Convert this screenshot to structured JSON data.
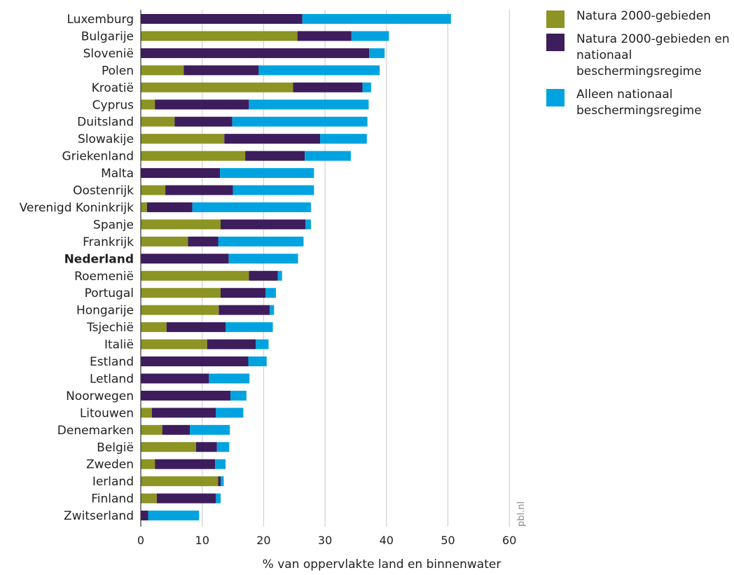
{
  "credit": "pbl.nl",
  "colors": {
    "natura": "#8C9423",
    "both": "#3D1D5C",
    "national": "#00A3DF",
    "grid": "#c8c8c8",
    "axis": "#333333"
  },
  "legend": [
    {
      "label": "Natura 2000-gebieden",
      "color": "#8C9423"
    },
    {
      "label": "Natura 2000-gebieden en nationaal beschermingsregime",
      "color": "#3D1D5C"
    },
    {
      "label": "Alleen nationaal beschermingsregime",
      "color": "#00A3DF"
    }
  ],
  "chart_data": {
    "type": "bar",
    "orientation": "horizontal",
    "stacked": true,
    "xlabel": "% van oppervlakte land en binnenwater",
    "xlim": [
      0,
      60
    ],
    "xticks": [
      0,
      10,
      20,
      30,
      40,
      50,
      60
    ],
    "grid": true,
    "legend_position": "right",
    "highlighted_category": "Nederland",
    "categories": [
      "Luxemburg",
      "Bulgarije",
      "Slovenië",
      "Polen",
      "Kroatië",
      "Cyprus",
      "Duitsland",
      "Slowakije",
      "Griekenland",
      "Malta",
      "Oostenrijk",
      "Verenigd Koninkrijk",
      "Spanje",
      "Frankrijk",
      "Nederland",
      "Roemenië",
      "Portugal",
      "Hongarije",
      "Tsjechië",
      "Italië",
      "Estland",
      "Letland",
      "Noorwegen",
      "Litouwen",
      "Denemarken",
      "België",
      "Zweden",
      "Ierland",
      "Finland",
      "Zwitserland"
    ],
    "series": [
      {
        "name": "Natura 2000-gebieden",
        "values": [
          0,
          25.5,
          0,
          7,
          24.8,
          2.3,
          5.5,
          13.6,
          17,
          0,
          4,
          1,
          13,
          7.7,
          0,
          17.6,
          13,
          12.7,
          4.2,
          10.8,
          0,
          0,
          0,
          1.8,
          3.5,
          9,
          2.3,
          12.6,
          2.6,
          0
        ]
      },
      {
        "name": "Natura 2000-gebieden en nationaal beschermingsregime",
        "values": [
          26.3,
          8.8,
          37.2,
          12.2,
          11.3,
          15.3,
          9.4,
          15.6,
          9.7,
          12.9,
          11,
          7.4,
          13.8,
          4.9,
          14.3,
          4.7,
          7.3,
          8.3,
          9.6,
          7.9,
          17.5,
          11.1,
          14.6,
          10.4,
          4.5,
          3.4,
          9.8,
          0.4,
          9.6,
          1.2
        ]
      },
      {
        "name": "Alleen nationaal beschermingsregime",
        "values": [
          24.2,
          6.1,
          2.5,
          19.7,
          1.4,
          19.5,
          22,
          7.6,
          7.5,
          15.3,
          13.2,
          19.3,
          0.9,
          13.9,
          11.3,
          0.7,
          1.7,
          0.7,
          7.7,
          2.1,
          3,
          6.6,
          2.6,
          4.5,
          6.5,
          2,
          1.7,
          0.5,
          0.8,
          8.3
        ]
      }
    ]
  }
}
